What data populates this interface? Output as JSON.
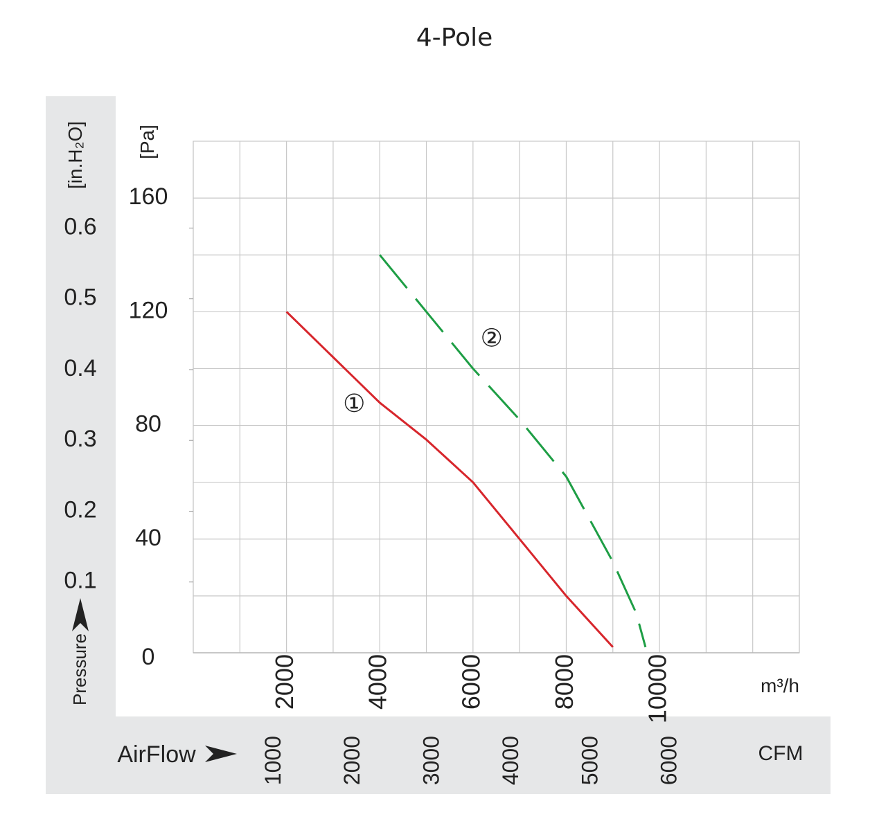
{
  "chart_data": {
    "type": "line",
    "title": "4-Pole",
    "xlabel": "AirFlow",
    "xunit_primary": "m³/h",
    "xunit_secondary": "CFM",
    "ylabel": "Pressure",
    "yunit_primary": "[Pa]",
    "yunit_secondary": "[in.H₂O]",
    "xlim": [
      0,
      13000
    ],
    "ylim": [
      0,
      180
    ],
    "grid": true,
    "x_ticks_m3h": [
      "2000",
      "4000",
      "6000",
      "8000",
      "10000"
    ],
    "x_ticks_cfm": [
      "1000",
      "2000",
      "3000",
      "4000",
      "5000",
      "6000"
    ],
    "y_ticks_pa": [
      "0",
      "40",
      "80",
      "120",
      "160"
    ],
    "y_ticks_inh2o": [
      "0.1",
      "0.2",
      "0.3",
      "0.4",
      "0.5",
      "0.6"
    ],
    "series": [
      {
        "name": "①",
        "color": "#d7262c",
        "dash": "solid",
        "x": [
          2000,
          3000,
          4000,
          5000,
          6000,
          7000,
          8000,
          9000
        ],
        "y": [
          120,
          104,
          88,
          75,
          60,
          40,
          20,
          2
        ]
      },
      {
        "name": "②",
        "color": "#1e9e45",
        "dash": "dashed",
        "x": [
          4000,
          5000,
          6000,
          7000,
          8000,
          9000,
          9500,
          9700
        ],
        "y": [
          140,
          120,
          100,
          82,
          62,
          32,
          14,
          2
        ]
      }
    ]
  }
}
